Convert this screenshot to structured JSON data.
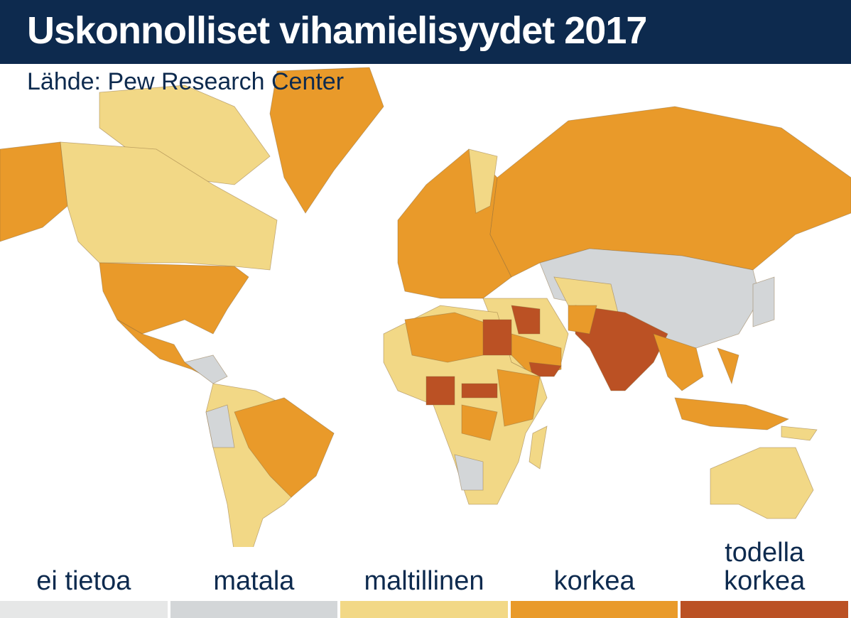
{
  "header": {
    "title": "Uskonnolliset vihamielisyydet 2017",
    "source": "Lähde: Pew Research Center"
  },
  "legend": [
    {
      "label": "ei tietoa",
      "color": "#e6e7e7"
    },
    {
      "label": "matala",
      "color": "#d3d6d8"
    },
    {
      "label": "maltillinen",
      "color": "#f2d886"
    },
    {
      "label": "korkea",
      "color": "#e99a2a"
    },
    {
      "label": "todella korkea",
      "color": "#bb5124"
    }
  ]
}
